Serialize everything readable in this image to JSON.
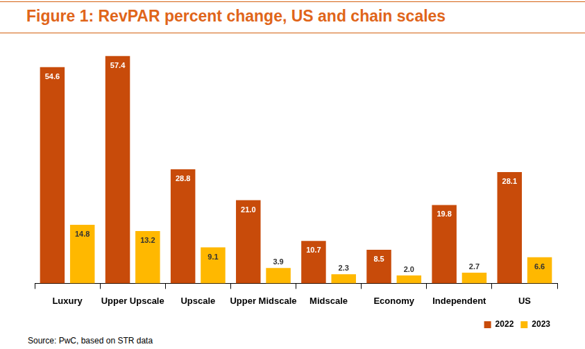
{
  "chart_data": {
    "type": "bar",
    "title": "Figure 1: RevPAR percent change, US and chain scales",
    "source": "Source: PwC, based on STR data",
    "categories": [
      "Luxury",
      "Upper Upscale",
      "Upscale",
      "Upper Midscale",
      "Midscale",
      "Economy",
      "Independent",
      "US"
    ],
    "series": [
      {
        "name": "2022",
        "color": "#c84b0a",
        "values": [
          54.6,
          57.4,
          28.8,
          21.0,
          10.7,
          8.5,
          19.8,
          28.1
        ],
        "value_labels": [
          "54.6",
          "57.4",
          "28.8",
          "21.0",
          "10.7",
          "8.5",
          "19.8",
          "28.1"
        ]
      },
      {
        "name": "2023",
        "color": "#ffb800",
        "values": [
          14.8,
          13.2,
          9.1,
          3.9,
          2.3,
          2.0,
          2.7,
          6.6
        ],
        "value_labels": [
          "14.8",
          "13.2",
          "9.1",
          "3.9",
          "2.3",
          "2.0",
          "2.7",
          "6.6"
        ]
      }
    ],
    "ylim": [
      0,
      60
    ],
    "grid": false,
    "legend": "bottom-right",
    "data_labels": true,
    "tick_labels": "x"
  }
}
